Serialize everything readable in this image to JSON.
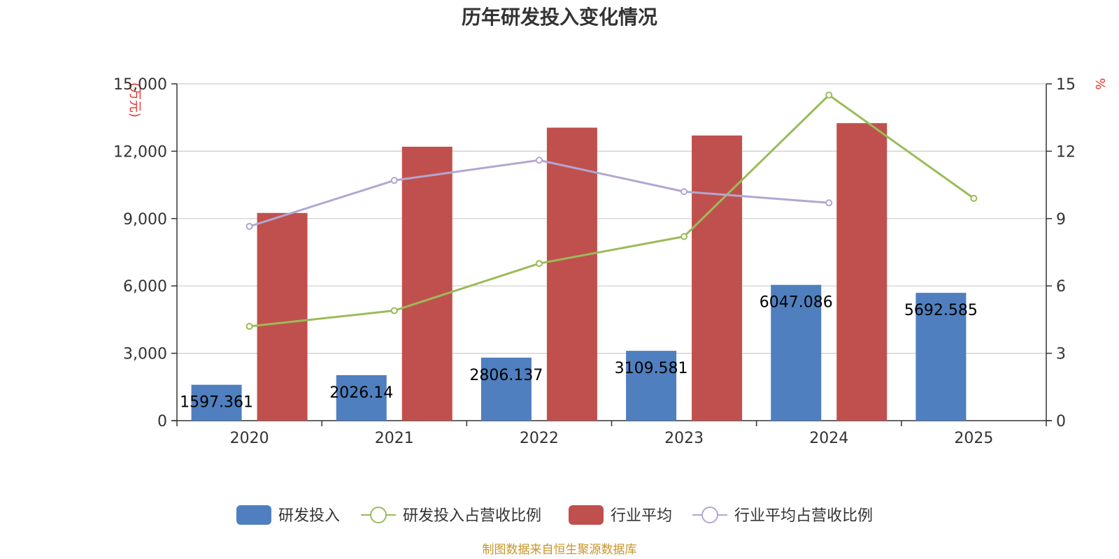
{
  "chart_data": {
    "type": "bar",
    "title": "历年研发投入变化情况",
    "categories": [
      "2020",
      "2021",
      "2022",
      "2023",
      "2024",
      "2025"
    ],
    "y_left": {
      "unit_label": "(万元)",
      "ylim": [
        0,
        15000
      ],
      "ticks": [
        0,
        3000,
        6000,
        9000,
        12000,
        15000
      ],
      "tick_labels": [
        "0",
        "3,000",
        "6,000",
        "9,000",
        "12,000",
        "15,000"
      ]
    },
    "y_right": {
      "unit_label": "%",
      "ylim": [
        0,
        15
      ],
      "ticks": [
        0,
        3,
        6,
        9,
        12,
        15
      ],
      "tick_labels": [
        "0",
        "3",
        "6",
        "9",
        "12",
        "15"
      ]
    },
    "grid": true,
    "legend_position": "bottom",
    "series": [
      {
        "name": "研发投入",
        "type": "bar",
        "axis": "left",
        "color": "#4f7fbe",
        "values": [
          1597.361,
          2026.14,
          2806.137,
          3109.581,
          6047.086,
          5692.585
        ],
        "labels": [
          "1597.361",
          "2026.14",
          "2806.137",
          "3109.581",
          "6047.086",
          "5692.585"
        ]
      },
      {
        "name": "研发投入占营收比例",
        "type": "line",
        "axis": "right",
        "color": "#9bbb59",
        "values": [
          4.2,
          4.9,
          7.0,
          8.2,
          14.5,
          9.9
        ]
      },
      {
        "name": "行业平均",
        "type": "bar",
        "axis": "left",
        "color": "#c0504d",
        "values": [
          9250,
          12200,
          13050,
          12700,
          13250,
          null
        ]
      },
      {
        "name": "行业平均占营收比例",
        "type": "line",
        "axis": "right",
        "color": "#b3a6d1",
        "values": [
          8.65,
          10.7,
          11.6,
          10.2,
          9.7,
          null
        ]
      }
    ]
  },
  "footer": {
    "source": "制图数据来自恒生聚源数据库"
  },
  "colors": {
    "source_text": "#c8952a",
    "unit_label": "#e8302a",
    "grid": "#cccccc",
    "axis": "#333333"
  }
}
